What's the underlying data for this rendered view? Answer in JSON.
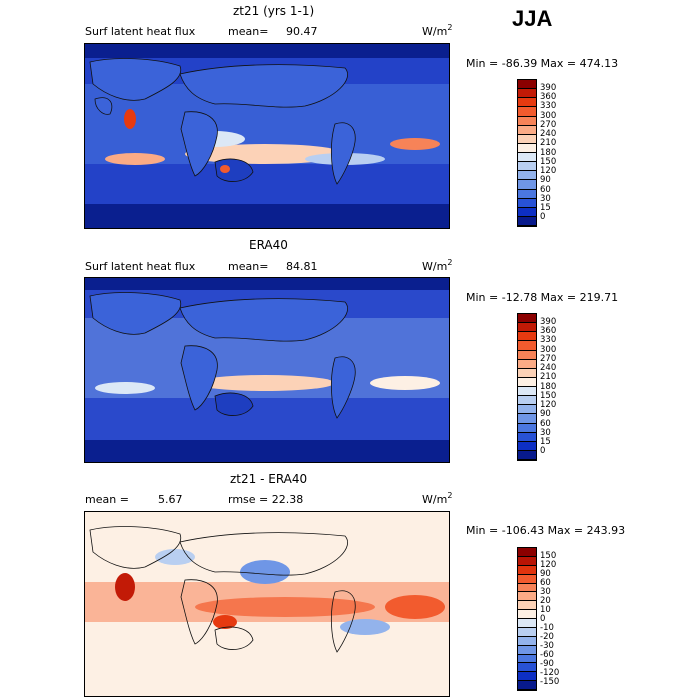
{
  "season": "JJA",
  "units_base": "W/m",
  "units_exp": "2",
  "panels": [
    {
      "title": "zt21 (yrs 1-1)",
      "left_label": "Surf latent heat flux",
      "stat_label": "mean=",
      "stat_value": "90.47",
      "minmax": "Min = -86.39 Max = 474.13",
      "colorbar_levels": [
        "390",
        "360",
        "330",
        "300",
        "270",
        "240",
        "210",
        "180",
        "150",
        "120",
        "90",
        "60",
        "30",
        "15",
        "0"
      ],
      "colorbar_colors": [
        "#8b0000",
        "#c21a06",
        "#e63a10",
        "#f25b2e",
        "#f78358",
        "#fbab86",
        "#fcd2b7",
        "#fdf0e4",
        "#dce8f6",
        "#b9cff1",
        "#93b3ec",
        "#6f96e6",
        "#4b77e0",
        "#2852d6",
        "#0d2fc4",
        "#081a8c"
      ]
    },
    {
      "title": "ERA40",
      "left_label": "Surf latent heat flux",
      "stat_label": "mean=",
      "stat_value": "84.81",
      "minmax": "Min = -12.78 Max = 219.71",
      "colorbar_levels": [
        "390",
        "360",
        "330",
        "300",
        "270",
        "240",
        "210",
        "180",
        "150",
        "120",
        "90",
        "60",
        "30",
        "15",
        "0"
      ],
      "colorbar_colors": [
        "#8b0000",
        "#c21a06",
        "#e63a10",
        "#f25b2e",
        "#f78358",
        "#fbab86",
        "#fcd2b7",
        "#fdf0e4",
        "#dce8f6",
        "#b9cff1",
        "#93b3ec",
        "#6f96e6",
        "#4b77e0",
        "#2852d6",
        "#0d2fc4",
        "#081a8c"
      ]
    },
    {
      "title": "zt21 - ERA40",
      "left_label": "mean =",
      "stat_label": "5.67",
      "stat_value": "rmse = 22.38",
      "minmax": "Min = -106.43 Max = 243.93",
      "colorbar_levels": [
        "150",
        "120",
        "90",
        "60",
        "30",
        "20",
        "10",
        "0",
        "-10",
        "-20",
        "-30",
        "-60",
        "-90",
        "-120",
        "-150"
      ],
      "colorbar_colors": [
        "#8b0000",
        "#b81405",
        "#e0340e",
        "#f25b2e",
        "#f78358",
        "#fbab86",
        "#fcd2b7",
        "#fdf0e4",
        "#dce8f6",
        "#b9cff1",
        "#93b3ec",
        "#6f96e6",
        "#4b77e0",
        "#2852d6",
        "#0d2fc4",
        "#081a8c"
      ]
    }
  ]
}
